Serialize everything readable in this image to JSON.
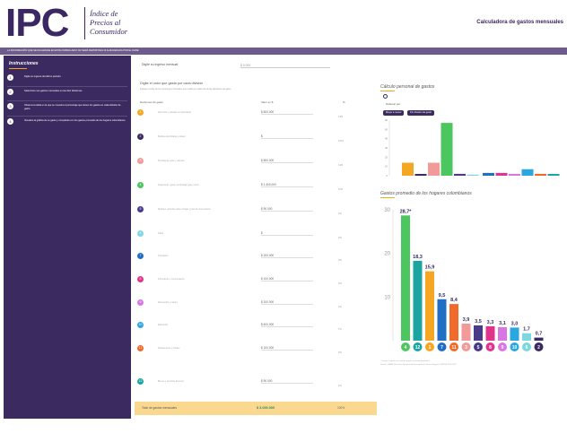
{
  "header": {
    "logo_text": "IPC",
    "logo_subtitle": [
      "Índice de",
      "Precios al",
      "Consumidor"
    ],
    "app_title": "Calculadora de gastos mensuales"
  },
  "banner": "LA INFORMACIÓN QUE SE DILIGENCIE EN ESTE FORMULARIO NO SERÁ REPORTADA NI ALMACENADA POR EL DANE",
  "sidebar": {
    "title": "Instrucciones",
    "items": [
      {
        "num": "1",
        "text": "Digite su ingreso del último periodo."
      },
      {
        "num": "2",
        "text": "Seleccione sus gastos mensuales en las diez divisiones."
      },
      {
        "num": "3",
        "text": "Observe la tabla en la que se muestra el porcentaje que tienen los gastos en cada división de gasto."
      },
      {
        "num": "4",
        "text": "Visualice la gráfica de su gasto y compárela con los gastos promedio de los hogares colombianos."
      }
    ]
  },
  "form": {
    "income_label": "Digite su ingreso mensual",
    "income_value": "$ 0.000",
    "title": "Digite el valor que gasta por cada división",
    "subtitle": "Ingrese el valor de los consumos mensuales que realiza en cada una de las divisiones de gasto",
    "col_division": "Divisiones de gasto",
    "col_value": "Valor en $",
    "col_pct": "%",
    "rows": [
      {
        "num": "1",
        "color": "#f5a623",
        "name": "Alimentos y bebidas no alcohólicas",
        "value": "$ 800.000",
        "pct": "14%"
      },
      {
        "num": "2",
        "color": "#3a2a5f",
        "name": "Bebidas alcohólicas y tabaco",
        "value": "$",
        "pct": "0.5%"
      },
      {
        "num": "3",
        "color": "#f29a9a",
        "name": "Prendas de vestir y calzado",
        "value": "$ 800.000",
        "pct": "14%"
      },
      {
        "num": "4",
        "color": "#4cc760",
        "name": "Alojamiento, agua, electricidad, gas y otros",
        "value": "$ 1.400.000",
        "pct": "57%"
      },
      {
        "num": "5",
        "color": "#4a3a8a",
        "name": "Muebles, artículos para el hogar y para la conservación",
        "value": "$ 90.000",
        "pct": "2%"
      },
      {
        "num": "6",
        "color": "#7ed6df",
        "name": "Salud",
        "value": "$",
        "pct": "0%"
      },
      {
        "num": "7",
        "color": "#1f6fc5",
        "name": "Transporte",
        "value": "$ 200.000",
        "pct": "3%"
      },
      {
        "num": "8",
        "color": "#e0348c",
        "name": "Información y comunicación",
        "value": "$ 100.000",
        "pct": "3%"
      },
      {
        "num": "9",
        "color": "#d876e3",
        "name": "Recreación y cultura",
        "value": "$ 100.000",
        "pct": "2%"
      },
      {
        "num": "10",
        "color": "#2aa6e0",
        "name": "Educación",
        "value": "$ 400.000",
        "pct": "7%"
      },
      {
        "num": "11",
        "color": "#f06a2a",
        "name": "Restaurantes y hoteles",
        "value": "$ 100.000",
        "pct": "2%"
      },
      {
        "num": "12",
        "color": "#1aa5a0",
        "name": "Bienes y servicios diversos",
        "value": "$ 90.000",
        "pct": "1%"
      }
    ],
    "total_label": "Total de gastos mensuales",
    "total_value": "$ 3.000.000",
    "total_pct": "100%"
  },
  "chart1": {
    "title": "Cálculo personal de gastos",
    "sort_label": "Ordenar por:",
    "btn_high": "Mayor a menor",
    "btn_div": "Por división de gasto"
  },
  "chart2": {
    "title": "Gastos promedio de los hogares colombianos",
    "footnote1": "* Incluye el gasto en vivienda propia (arriendo imputado)",
    "footnote2": "Fuente: DANE, Encuesta Nacional de Presupuestos de los Hogares (ENPH) 2016-2017"
  },
  "chart_data": [
    {
      "type": "bar",
      "title": "Cálculo personal de gastos",
      "categories": [
        "1",
        "2",
        "3",
        "4",
        "5",
        "6",
        "7",
        "8",
        "9",
        "10",
        "11",
        "12"
      ],
      "values": [
        14,
        0.5,
        14,
        57,
        2,
        0,
        3,
        3,
        2,
        7,
        2,
        1
      ],
      "colors": [
        "#f5a623",
        "#3a2a5f",
        "#f29a9a",
        "#4cc760",
        "#4a3a8a",
        "#7ed6df",
        "#1f6fc5",
        "#e0348c",
        "#d876e3",
        "#2aa6e0",
        "#f06a2a",
        "#1aa5a0"
      ],
      "ylim": [
        0,
        60
      ],
      "yticks": [
        0,
        10,
        20,
        30,
        40,
        50,
        60
      ],
      "grid": false
    },
    {
      "type": "bar",
      "title": "Gastos promedio de los hogares colombianos",
      "categories": [
        "4",
        "12",
        "1",
        "7",
        "11",
        "3",
        "5",
        "8",
        "9",
        "10",
        "6",
        "2"
      ],
      "values": [
        28.7,
        18.3,
        15.9,
        9.5,
        8.4,
        3.9,
        3.5,
        3.3,
        3.1,
        3.0,
        1.7,
        0.7
      ],
      "labels": [
        "28,7*",
        "18,3",
        "15,9",
        "9,5",
        "8,4",
        "3,9",
        "3,5",
        "3,3",
        "3,1",
        "3,0",
        "1,7",
        "0,7"
      ],
      "colors": [
        "#4cc760",
        "#1aa5a0",
        "#f5a623",
        "#1f6fc5",
        "#f06a2a",
        "#f29a9a",
        "#4a3a8a",
        "#e0348c",
        "#d876e3",
        "#2aa6e0",
        "#7ed6df",
        "#3a2a5f"
      ],
      "ylim": [
        0,
        30
      ],
      "yticks": [
        10,
        20,
        30
      ],
      "grid": false
    }
  ]
}
